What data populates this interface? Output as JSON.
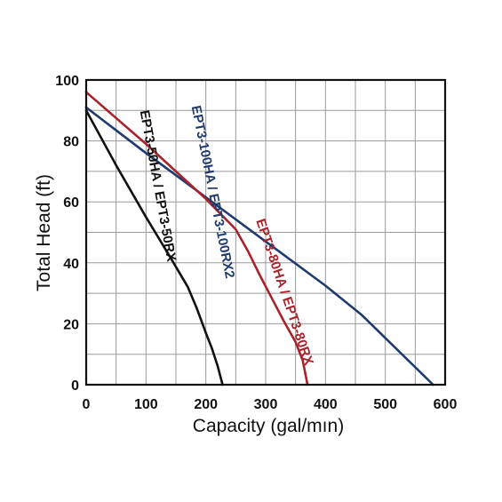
{
  "chart_data": {
    "type": "line",
    "xlabel": "Capacity (gal/mın)",
    "ylabel": "Total Head (ft)",
    "xlim": [
      0,
      600
    ],
    "ylim": [
      0,
      100
    ],
    "x_ticks": [
      "0",
      "100",
      "200",
      "300",
      "400",
      "500",
      "600"
    ],
    "y_ticks": [
      "0",
      "20",
      "40",
      "60",
      "80",
      "100"
    ],
    "grid": true,
    "legend": "none (series labeled inline along curves)",
    "series": [
      {
        "name": "EPT3-100HA / EPT3-100RX2",
        "color": "#1f3a6e",
        "x": [
          0,
          100,
          200,
          300,
          400,
          460,
          580
        ],
        "y": [
          91,
          76,
          61.5,
          47,
          32.5,
          23,
          0
        ],
        "label_at": [
          205,
          63,
          0.98
        ]
      },
      {
        "name": "EPT3-80HA / EPT3-80RX",
        "color": "#a8232b",
        "x": [
          0,
          100,
          200,
          250,
          270,
          290,
          310,
          330,
          350,
          362,
          370
        ],
        "y": [
          96,
          79,
          61,
          51,
          44,
          36,
          28.5,
          21,
          14,
          8,
          0
        ],
        "label_at": [
          325,
          30,
          0.58
        ]
      },
      {
        "name": "EPT3-50HA / EPT3-50RX",
        "color": "#111111",
        "x": [
          0,
          50,
          100,
          140,
          170,
          185,
          200,
          210,
          220,
          228
        ],
        "y": [
          90,
          72,
          55,
          42,
          32,
          25,
          17,
          12,
          6,
          0
        ],
        "label_at": [
          113,
          65,
          1.08
        ]
      }
    ]
  }
}
